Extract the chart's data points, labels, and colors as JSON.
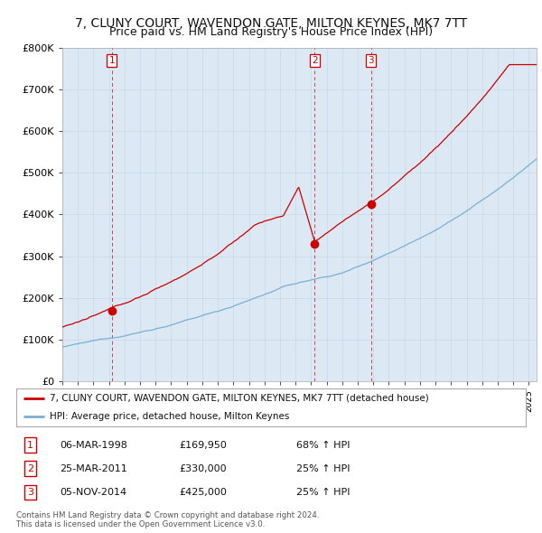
{
  "title": "7, CLUNY COURT, WAVENDON GATE, MILTON KEYNES, MK7 7TT",
  "subtitle": "Price paid vs. HM Land Registry's House Price Index (HPI)",
  "ylim": [
    0,
    800000
  ],
  "yticks": [
    0,
    100000,
    200000,
    300000,
    400000,
    500000,
    600000,
    700000,
    800000
  ],
  "xlim_start": 1995.0,
  "xlim_end": 2025.5,
  "red_line_color": "#cc0000",
  "blue_line_color": "#7aafd4",
  "chart_bg": "#dce9f5",
  "sale_dates": [
    1998.18,
    2011.23,
    2014.84
  ],
  "sale_prices": [
    169950,
    330000,
    425000
  ],
  "sale_labels": [
    "1",
    "2",
    "3"
  ],
  "legend_red": "7, CLUNY COURT, WAVENDON GATE, MILTON KEYNES, MK7 7TT (detached house)",
  "legend_blue": "HPI: Average price, detached house, Milton Keynes",
  "table_rows": [
    [
      "1",
      "06-MAR-1998",
      "£169,950",
      "68% ↑ HPI"
    ],
    [
      "2",
      "25-MAR-2011",
      "£330,000",
      "25% ↑ HPI"
    ],
    [
      "3",
      "05-NOV-2014",
      "£425,000",
      "25% ↑ HPI"
    ]
  ],
  "footnote1": "Contains HM Land Registry data © Crown copyright and database right 2024.",
  "footnote2": "This data is licensed under the Open Government Licence v3.0.",
  "bg_color": "#ffffff",
  "grid_color": "#c8d8e8",
  "title_fontsize": 10,
  "subtitle_fontsize": 9
}
